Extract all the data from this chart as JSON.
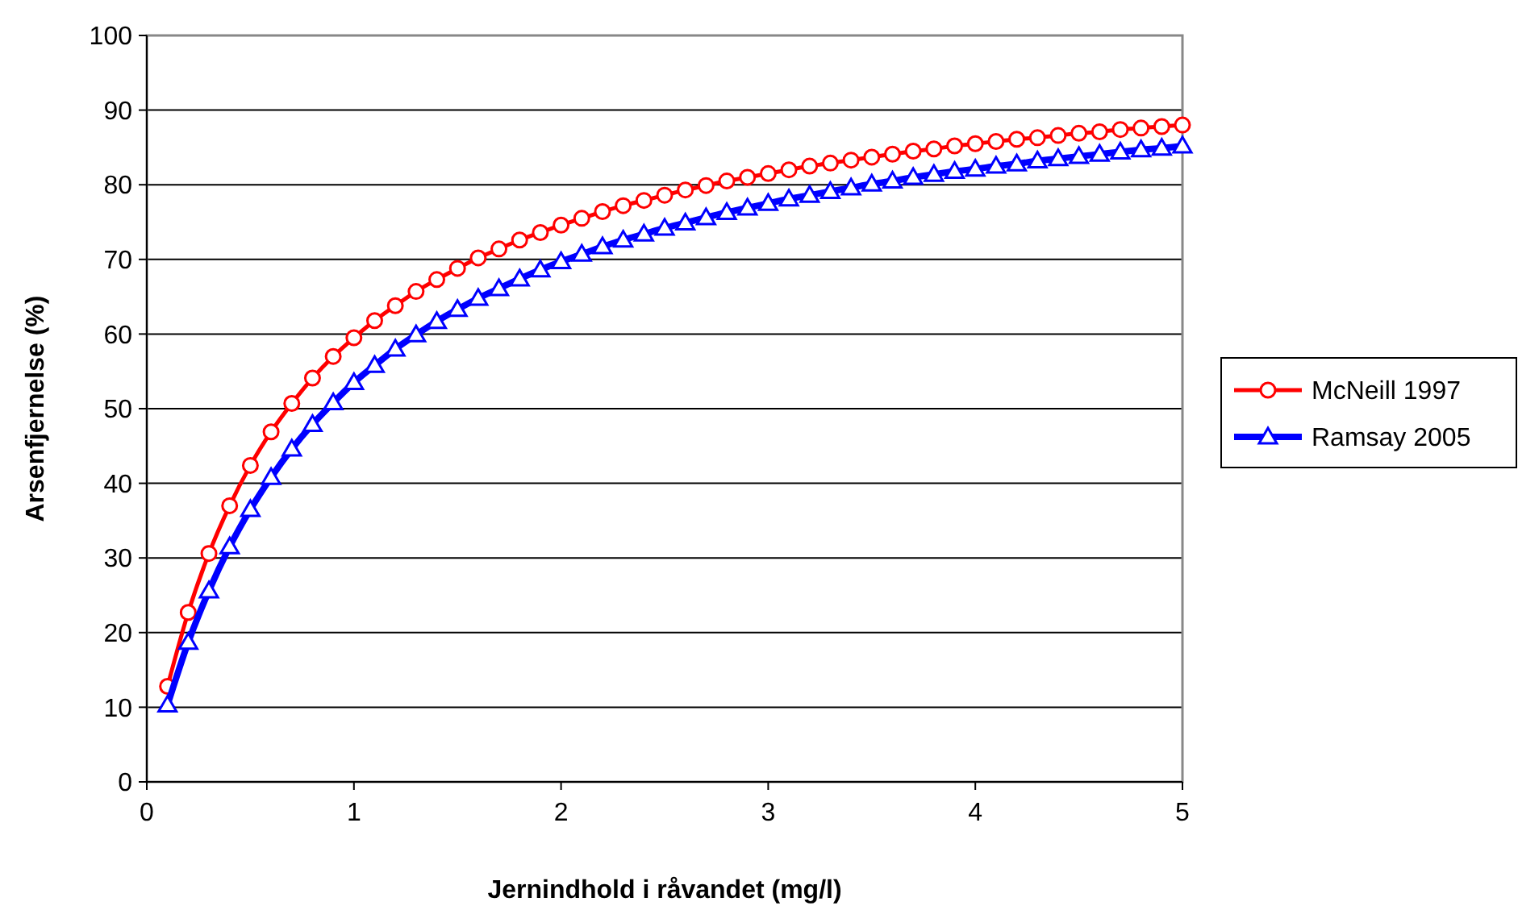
{
  "chart_data": {
    "type": "line",
    "xlabel": "Jernindhold i råvandet (mg/l)",
    "ylabel": "Arsenfjernelse (%)",
    "x": [
      0.1,
      0.2,
      0.3,
      0.4,
      0.5,
      0.6,
      0.7,
      0.8,
      0.9,
      1.0,
      1.1,
      1.2,
      1.3,
      1.4,
      1.5,
      1.6,
      1.7,
      1.8,
      1.9,
      2.0,
      2.1,
      2.2,
      2.3,
      2.4,
      2.5,
      2.6,
      2.7,
      2.8,
      2.9,
      3.0,
      3.1,
      3.2,
      3.3,
      3.4,
      3.5,
      3.6,
      3.7,
      3.8,
      3.9,
      4.0,
      4.1,
      4.2,
      4.3,
      4.4,
      4.5,
      4.6,
      4.7,
      4.8,
      4.9,
      5.0
    ],
    "series": [
      {
        "name": "McNeill 1997",
        "color": "#ff0000",
        "marker": "circle",
        "values": [
          12.8,
          22.7,
          30.6,
          37.0,
          42.4,
          46.9,
          50.7,
          54.1,
          57.0,
          59.5,
          61.8,
          63.8,
          65.7,
          67.3,
          68.8,
          70.2,
          71.4,
          72.6,
          73.6,
          74.6,
          75.5,
          76.4,
          77.2,
          77.9,
          78.6,
          79.3,
          79.9,
          80.5,
          81.0,
          81.5,
          82.0,
          82.5,
          82.9,
          83.3,
          83.7,
          84.1,
          84.5,
          84.8,
          85.2,
          85.5,
          85.8,
          86.1,
          86.3,
          86.6,
          86.9,
          87.1,
          87.4,
          87.6,
          87.8,
          88.0
        ]
      },
      {
        "name": "Ramsay 2005",
        "color": "#0000ff",
        "marker": "triangle",
        "values": [
          10.3,
          18.7,
          25.6,
          31.5,
          36.5,
          40.8,
          44.6,
          47.9,
          50.8,
          53.5,
          55.8,
          58.0,
          59.9,
          61.7,
          63.3,
          64.8,
          66.1,
          67.4,
          68.6,
          69.7,
          70.7,
          71.7,
          72.6,
          73.4,
          74.2,
          74.9,
          75.6,
          76.3,
          76.9,
          77.5,
          78.1,
          78.6,
          79.1,
          79.6,
          80.1,
          80.5,
          81.0,
          81.4,
          81.8,
          82.1,
          82.5,
          82.8,
          83.2,
          83.5,
          83.8,
          84.1,
          84.4,
          84.7,
          84.9,
          85.2
        ]
      }
    ],
    "xlim": [
      0,
      5
    ],
    "xticks": [
      0,
      1,
      2,
      3,
      4,
      5
    ],
    "ylim": [
      0,
      100
    ],
    "yticks": [
      0,
      10,
      20,
      30,
      40,
      50,
      60,
      70,
      80,
      90,
      100
    ],
    "grid": "y",
    "legend": "right",
    "line_style": "solid"
  }
}
